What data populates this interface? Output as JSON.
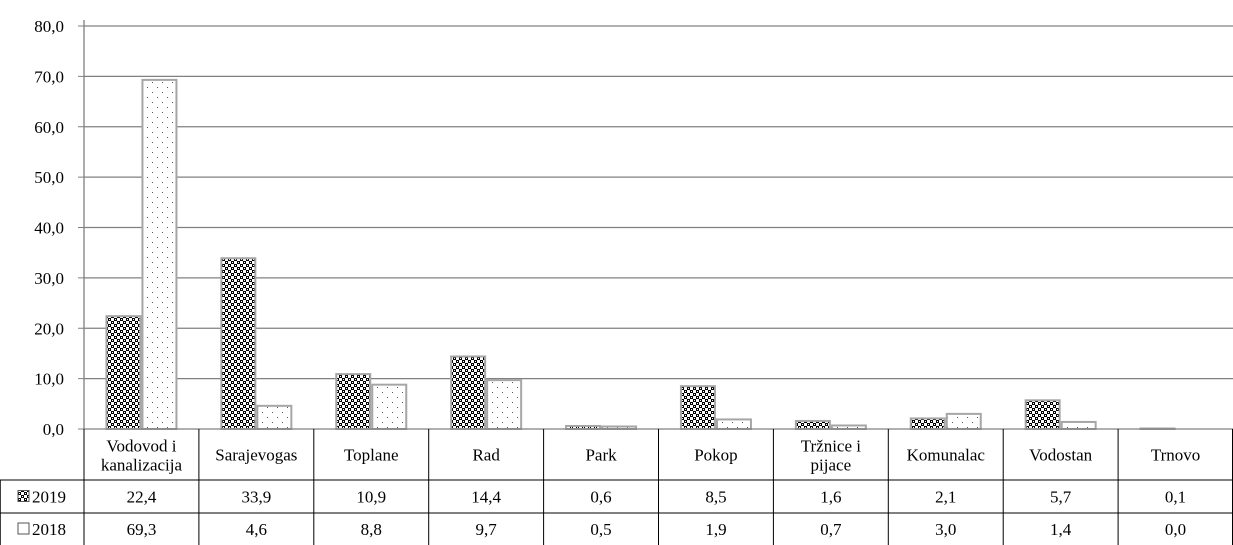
{
  "chart_data": {
    "type": "bar",
    "title": "",
    "xlabel": "",
    "ylabel": "",
    "ylim": [
      0,
      80
    ],
    "y_ticks": [
      0,
      10,
      20,
      30,
      40,
      50,
      60,
      70,
      80
    ],
    "y_tick_labels": [
      "0,0",
      "10,0",
      "20,0",
      "30,0",
      "40,0",
      "50,0",
      "60,0",
      "70,0",
      "80,0"
    ],
    "grid": true,
    "legend": "data-table",
    "categories": [
      [
        "Vodovod i",
        "kanalizacija"
      ],
      [
        "Sarajevogas"
      ],
      [
        "Toplane"
      ],
      [
        "Rad"
      ],
      [
        "Park"
      ],
      [
        "Pokop"
      ],
      [
        "Tržnice i",
        "pijace"
      ],
      [
        "Komunalac"
      ],
      [
        "Vodostan"
      ],
      [
        "Trnovo"
      ]
    ],
    "series": [
      {
        "name": "2019",
        "pattern": "checker",
        "values": [
          22.4,
          33.9,
          10.9,
          14.4,
          0.6,
          8.5,
          1.6,
          2.1,
          5.7,
          0.1
        ],
        "labels": [
          "22,4",
          "33,9",
          "10,9",
          "14,4",
          "0,6",
          "8,5",
          "1,6",
          "2,1",
          "5,7",
          "0,1"
        ]
      },
      {
        "name": "2018",
        "pattern": "dots",
        "values": [
          69.3,
          4.6,
          8.8,
          9.7,
          0.5,
          1.9,
          0.7,
          3.0,
          1.4,
          0.0
        ],
        "labels": [
          "69,3",
          "4,6",
          "8,8",
          "9,7",
          "0,5",
          "1,9",
          "0,7",
          "3,0",
          "1,4",
          "0,0"
        ]
      }
    ],
    "colors": {
      "grid": "#808080",
      "bar_border": "#a6a6a6",
      "axis": "#808080"
    }
  }
}
